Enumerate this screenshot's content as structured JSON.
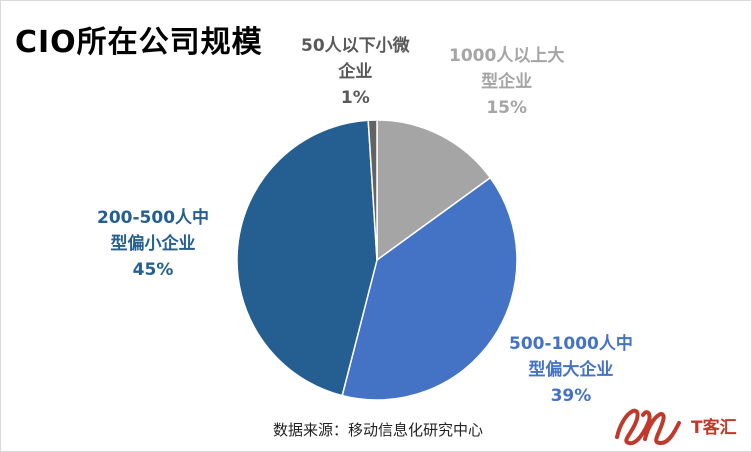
{
  "chart_data": {
    "type": "pie",
    "title": "CIO所在公司规模",
    "slices": [
      {
        "label_lines": [
          "1000人以上大",
          "型企业"
        ],
        "value": 15,
        "value_label": "15%",
        "color": "#a5a5a5"
      },
      {
        "label_lines": [
          "500-1000人中",
          "型偏大企业"
        ],
        "value": 39,
        "value_label": "39%",
        "color": "#4472c4"
      },
      {
        "label_lines": [
          "200-500人中",
          "型偏小企业"
        ],
        "value": 45,
        "value_label": "45%",
        "color": "#255e91"
      },
      {
        "label_lines": [
          "50人以下小微",
          "企业"
        ],
        "value": 1,
        "value_label": "1%",
        "color": "#636363"
      }
    ],
    "label_colors": [
      "#a5a5a5",
      "#4472c4",
      "#255e91",
      "#595959"
    ],
    "start_angle_deg": 0,
    "direction": "clockwise"
  },
  "footer": {
    "source": "数据来源：移动信息化研究中心"
  },
  "watermark": {
    "brand_text": "T客汇",
    "logo_color": "#c0392b"
  }
}
